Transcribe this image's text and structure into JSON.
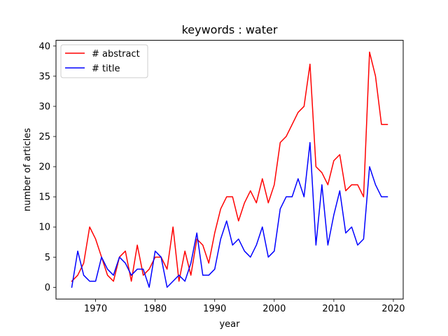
{
  "chart_data": {
    "type": "line",
    "title": "keywords : water",
    "xlabel": "year",
    "ylabel": "number of articles",
    "xlim": [
      1963.35,
      2021.65
    ],
    "ylim": [
      -1.95,
      40.95
    ],
    "xticks": [
      1970,
      1980,
      1990,
      2000,
      2010,
      2020
    ],
    "yticks": [
      0,
      5,
      10,
      15,
      20,
      25,
      30,
      35,
      40
    ],
    "grid": false,
    "legend_position": "top-left",
    "x": [
      1966,
      1967,
      1968,
      1969,
      1970,
      1971,
      1972,
      1973,
      1974,
      1975,
      1976,
      1977,
      1978,
      1979,
      1980,
      1981,
      1982,
      1983,
      1984,
      1985,
      1986,
      1987,
      1988,
      1989,
      1990,
      1991,
      1992,
      1993,
      1994,
      1995,
      1996,
      1997,
      1998,
      1999,
      2000,
      2001,
      2002,
      2003,
      2004,
      2005,
      2006,
      2007,
      2008,
      2009,
      2010,
      2011,
      2012,
      2013,
      2014,
      2015,
      2016,
      2017,
      2018,
      2019
    ],
    "series": [
      {
        "name": "# abstract",
        "color": "#ff0000",
        "values": [
          1,
          2,
          4,
          10,
          8,
          5,
          2,
          1,
          5,
          6,
          1,
          7,
          2,
          3,
          5,
          5,
          3,
          10,
          1,
          6,
          2,
          8,
          7,
          4,
          9,
          13,
          15,
          15,
          11,
          14,
          16,
          14,
          18,
          14,
          17,
          24,
          25,
          27,
          29,
          30,
          37,
          20,
          19,
          17,
          21,
          22,
          16,
          17,
          17,
          15,
          39,
          35,
          27,
          27
        ]
      },
      {
        "name": "# title",
        "color": "#0000ff",
        "values": [
          0,
          6,
          2,
          1,
          1,
          5,
          3,
          2,
          5,
          4,
          2,
          3,
          3,
          0,
          6,
          5,
          0,
          1,
          2,
          1,
          4,
          9,
          2,
          2,
          3,
          8,
          11,
          7,
          8,
          6,
          5,
          7,
          10,
          5,
          6,
          13,
          15,
          15,
          18,
          15,
          24,
          7,
          17,
          7,
          12,
          16,
          9,
          10,
          7,
          8,
          20,
          17,
          15,
          15
        ]
      }
    ]
  }
}
